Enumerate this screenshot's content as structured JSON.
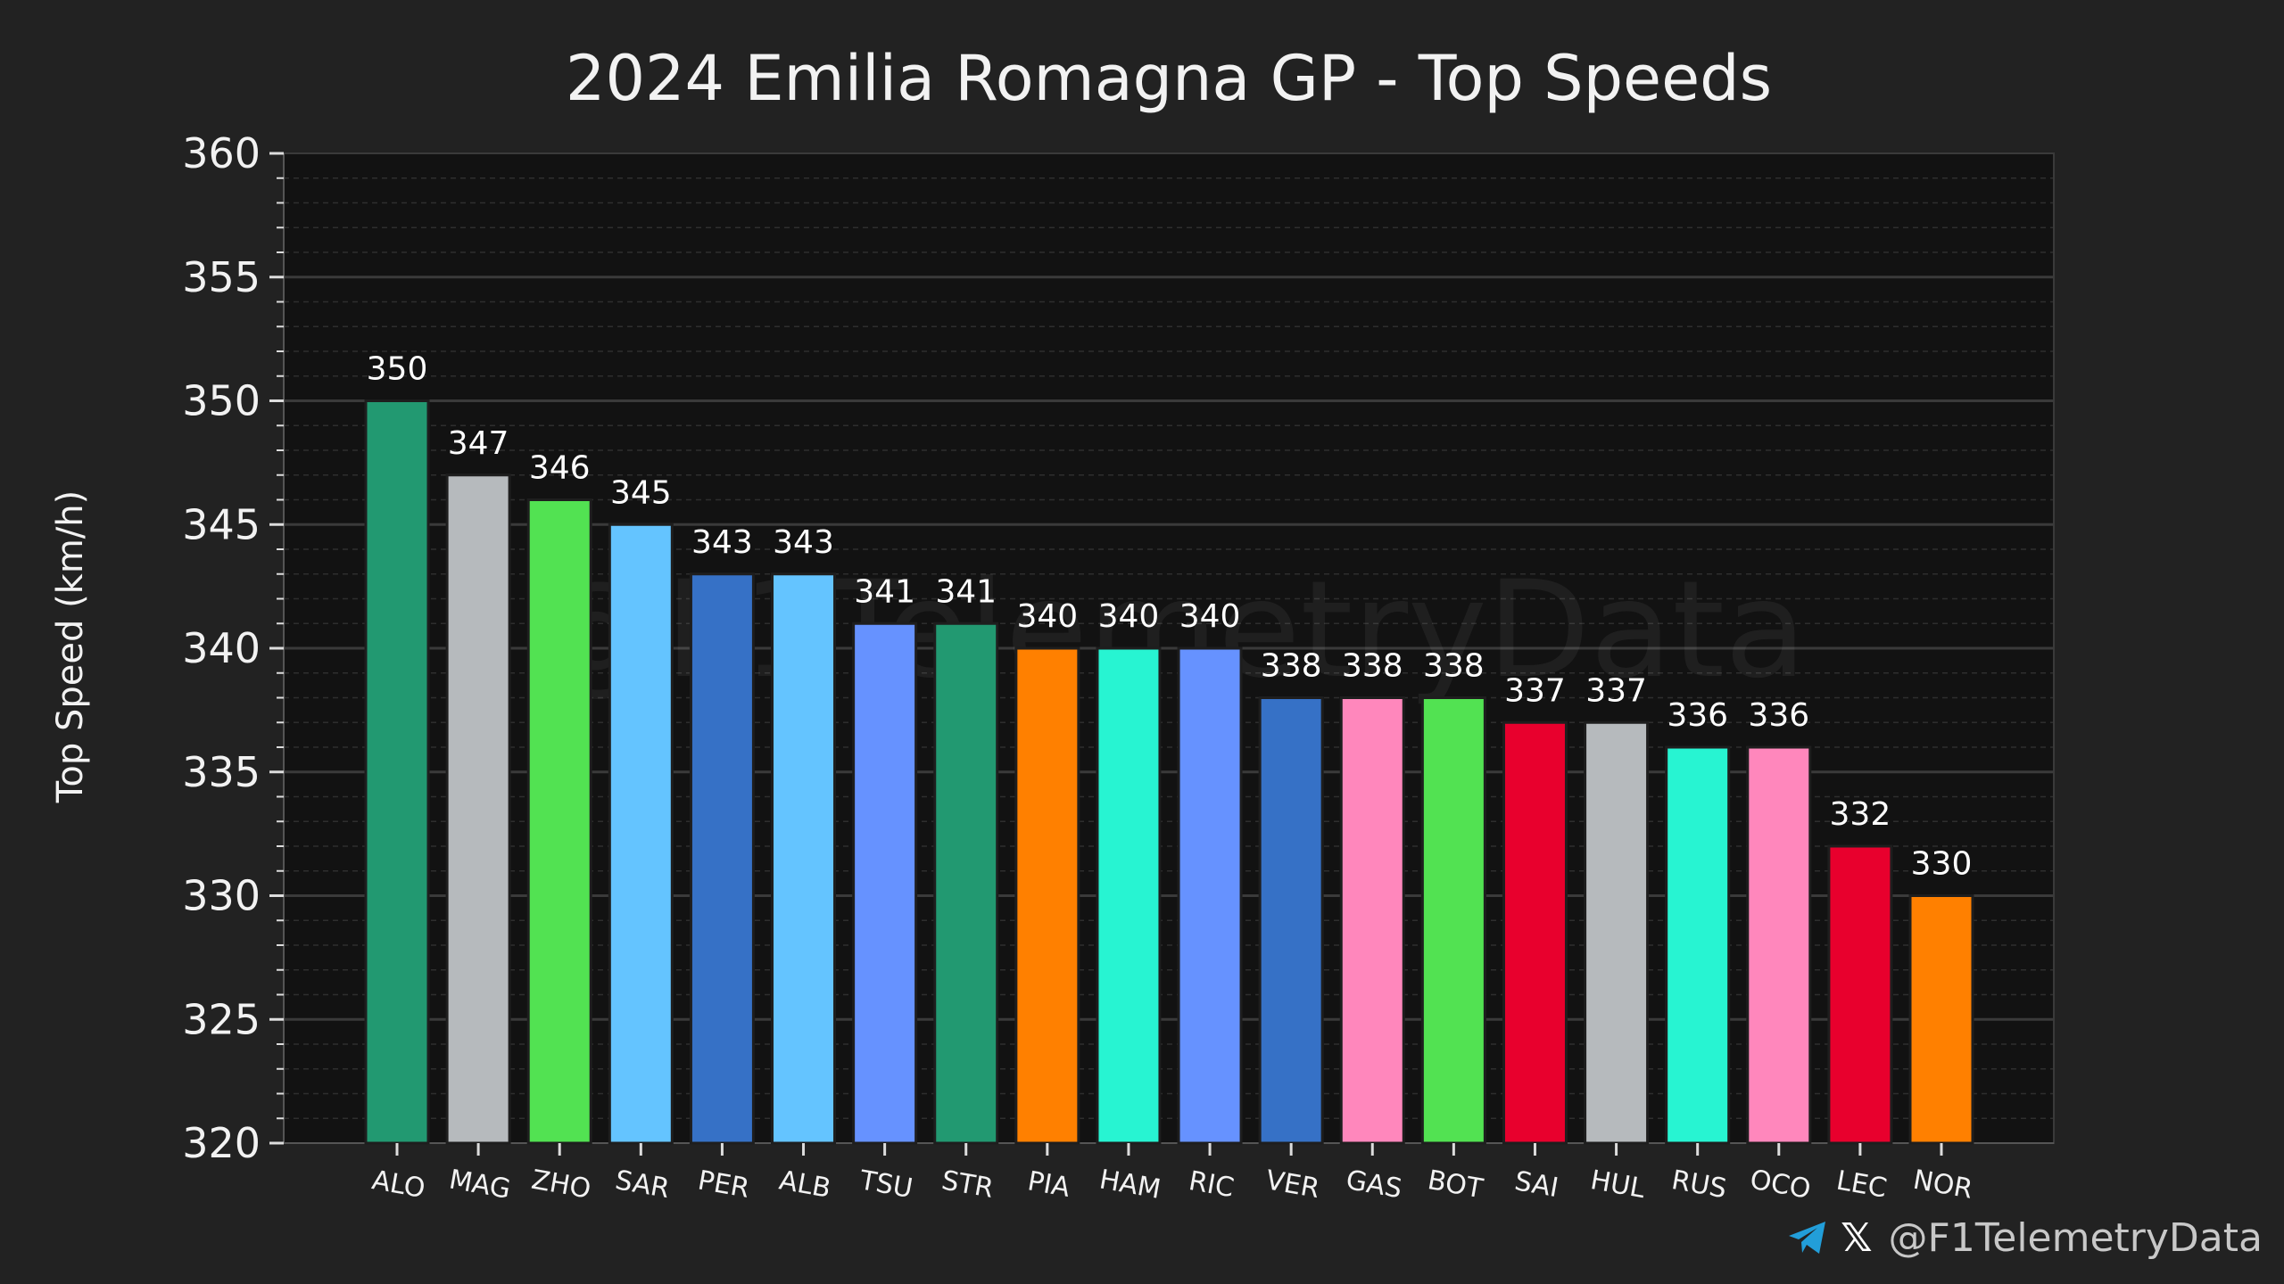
{
  "chart_data": {
    "type": "bar",
    "title": "2024 Emilia Romagna GP - Top Speeds",
    "xlabel": "",
    "ylabel": "Top Speed (km/h)",
    "ylim": [
      320,
      360
    ],
    "yticks": [
      320,
      325,
      330,
      335,
      340,
      345,
      350,
      355,
      360
    ],
    "grid": true,
    "categories": [
      "ALO",
      "MAG",
      "ZHO",
      "SAR",
      "PER",
      "ALB",
      "TSU",
      "STR",
      "PIA",
      "HAM",
      "RIC",
      "VER",
      "GAS",
      "BOT",
      "SAI",
      "HUL",
      "RUS",
      "OCO",
      "LEC",
      "NOR"
    ],
    "values": [
      350,
      347,
      346,
      345,
      343,
      343,
      341,
      341,
      340,
      340,
      340,
      338,
      338,
      338,
      337,
      337,
      336,
      336,
      332,
      330
    ],
    "colors": [
      "#229971",
      "#B6BABD",
      "#52E252",
      "#64C4FF",
      "#3671C6",
      "#64C4FF",
      "#6692FF",
      "#229971",
      "#FF8000",
      "#27F4D2",
      "#6692FF",
      "#3671C6",
      "#FF87BC",
      "#52E252",
      "#E8002D",
      "#B6BABD",
      "#27F4D2",
      "#FF87BC",
      "#E8002D",
      "#FF8000"
    ]
  },
  "watermark": "@F1TelemetryData",
  "credit": {
    "telegram_icon": "telegram-icon",
    "x_icon": "x-logo-icon",
    "x_glyph": "𝕏",
    "handle": "@F1TelemetryData"
  }
}
